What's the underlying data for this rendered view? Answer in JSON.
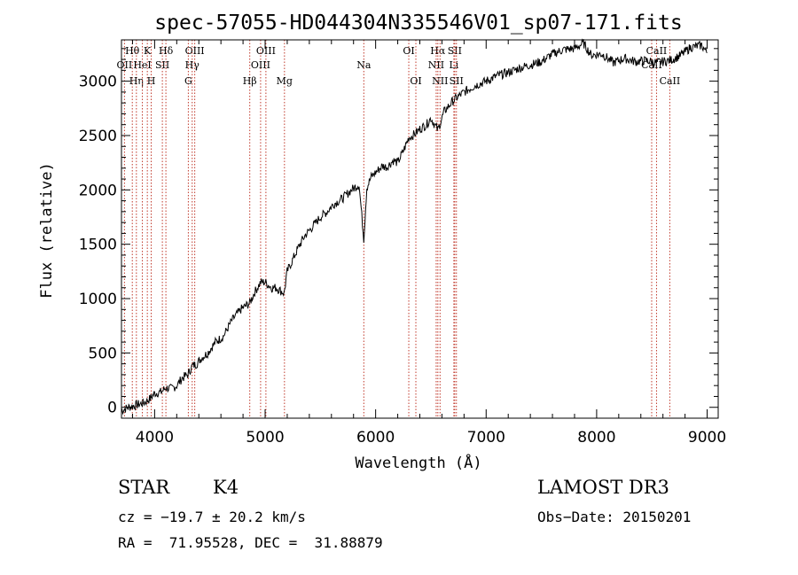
{
  "chart_data": {
    "type": "line",
    "title": "spec-57055-HD044304N335546V01_sp07-171.fits",
    "xlabel": "Wavelength (Å)",
    "ylabel": "Flux (relative)",
    "xlim": [
      3700,
      9100
    ],
    "ylim": [
      -100,
      3380
    ],
    "x_ticks": [
      4000,
      5000,
      6000,
      7000,
      8000,
      9000
    ],
    "y_ticks": [
      0,
      500,
      1000,
      1500,
      2000,
      2500,
      3000
    ],
    "series": [
      {
        "name": "flux",
        "x": [
          3700,
          3760,
          3830,
          3900,
          3960,
          4000,
          4060,
          4100,
          4150,
          4200,
          4250,
          4300,
          4340,
          4380,
          4420,
          4480,
          4550,
          4620,
          4700,
          4780,
          4861,
          4900,
          4960,
          5000,
          5060,
          5100,
          5172,
          5200,
          5260,
          5300,
          5360,
          5420,
          5500,
          5560,
          5620,
          5700,
          5780,
          5850,
          5893,
          5920,
          5960,
          6000,
          6060,
          6100,
          6160,
          6200,
          6260,
          6300,
          6350,
          6400,
          6460,
          6500,
          6563,
          6620,
          6700,
          6800,
          6900,
          7000,
          7100,
          7200,
          7300,
          7400,
          7500,
          7600,
          7700,
          7800,
          7880,
          7950,
          8050,
          8150,
          8250,
          8350,
          8450,
          8542,
          8600,
          8662,
          8750,
          8850,
          8950,
          9000
        ],
        "y": [
          -30,
          0,
          20,
          40,
          80,
          130,
          140,
          180,
          170,
          200,
          270,
          300,
          380,
          400,
          450,
          500,
          600,
          650,
          800,
          900,
          960,
          1050,
          1150,
          1150,
          1100,
          1100,
          1050,
          1250,
          1380,
          1470,
          1580,
          1650,
          1750,
          1800,
          1870,
          1920,
          2000,
          2050,
          1550,
          2020,
          2120,
          2160,
          2220,
          2210,
          2270,
          2250,
          2380,
          2480,
          2510,
          2560,
          2600,
          2660,
          2550,
          2720,
          2820,
          2900,
          2960,
          3000,
          3050,
          3080,
          3120,
          3150,
          3180,
          3250,
          3290,
          3300,
          3350,
          3240,
          3250,
          3170,
          3210,
          3180,
          3190,
          3170,
          3180,
          3190,
          3230,
          3310,
          3330,
          3260
        ]
      }
    ],
    "lines": [
      {
        "label": "Hθ",
        "wave": 3798,
        "row": 1
      },
      {
        "label": "OII",
        "wave": 3727,
        "row": 2
      },
      {
        "label": "Hη",
        "wave": 3835,
        "row": 3
      },
      {
        "label": "HeI",
        "wave": 3889,
        "row": 2
      },
      {
        "label": "K",
        "wave": 3934,
        "row": 1
      },
      {
        "label": "H",
        "wave": 3969,
        "row": 3
      },
      {
        "label": "SII",
        "wave": 4070,
        "row": 2
      },
      {
        "label": "Hδ",
        "wave": 4102,
        "row": 1
      },
      {
        "label": "OIII",
        "wave": 4363,
        "row": 1
      },
      {
        "label": "Hγ",
        "wave": 4340,
        "row": 2
      },
      {
        "label": "G",
        "wave": 4305,
        "row": 3
      },
      {
        "label": "Hβ",
        "wave": 4861,
        "row": 3
      },
      {
        "label": "OIII",
        "wave": 5007,
        "row": 1
      },
      {
        "label": "OIII",
        "wave": 4959,
        "row": 2
      },
      {
        "label": "Mg",
        "wave": 5175,
        "row": 3
      },
      {
        "label": "Na",
        "wave": 5893,
        "row": 2
      },
      {
        "label": "OI",
        "wave": 6300,
        "row": 1
      },
      {
        "label": "OI",
        "wave": 6364,
        "row": 3
      },
      {
        "label": "Hα",
        "wave": 6563,
        "row": 1
      },
      {
        "label": "NII",
        "wave": 6548,
        "row": 2
      },
      {
        "label": "NII",
        "wave": 6583,
        "row": 3
      },
      {
        "label": "SII",
        "wave": 6716,
        "row": 1
      },
      {
        "label": "Li",
        "wave": 6708,
        "row": 2
      },
      {
        "label": "SII",
        "wave": 6731,
        "row": 3
      },
      {
        "label": "CaII",
        "wave": 8542,
        "row": 1
      },
      {
        "label": "CaII",
        "wave": 8498,
        "row": 2
      },
      {
        "label": "CaII",
        "wave": 8662,
        "row": 3
      }
    ],
    "grid": false,
    "legend": "none"
  },
  "info": {
    "class_label": "STAR",
    "subclass": "K4",
    "survey": "LAMOST DR3",
    "cz": "cz = −19.7 ± 20.2 km/s",
    "obs_date": "Obs−Date: 20150201",
    "coords": "RA =  71.95528, DEC =  31.88879"
  },
  "colors": {
    "line_marker": "#c0392b",
    "spectrum": "#000000"
  }
}
